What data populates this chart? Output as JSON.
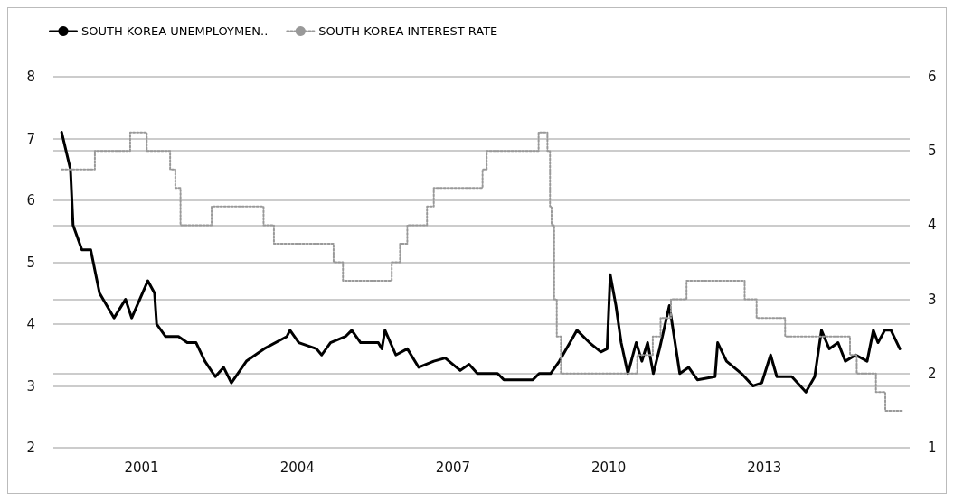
{
  "chart_data": {
    "type": "line",
    "legend": "top left",
    "grid": true,
    "marker": "none",
    "xlim": [
      1999.3,
      2015.8
    ],
    "xticks": [
      2001,
      2004,
      2007,
      2010,
      2013
    ],
    "ylim": [
      2,
      8
    ],
    "yticks": [
      2,
      3,
      4,
      5,
      6,
      7,
      8
    ],
    "y2lim": [
      1,
      6
    ],
    "y2ticks": [
      1,
      2,
      3,
      4,
      5,
      6
    ],
    "series": [
      {
        "name": "SOUTH KOREA UNEMPLOYMEN..",
        "color": "#000000",
        "line_style": "solid",
        "x": [
          1999.46,
          1999.63,
          1999.68,
          1999.85,
          2000.02,
          2000.19,
          2000.47,
          2000.69,
          2000.81,
          2001.12,
          2001.25,
          2001.29,
          2001.46,
          2001.71,
          2001.88,
          2002.05,
          2002.22,
          2002.42,
          2002.58,
          2002.73,
          2003.02,
          2003.36,
          2003.8,
          2003.86,
          2004.03,
          2004.37,
          2004.47,
          2004.64,
          2004.93,
          2005.05,
          2005.22,
          2005.56,
          2005.63,
          2005.69,
          2005.9,
          2006.12,
          2006.34,
          2006.63,
          2006.85,
          2007.14,
          2007.31,
          2007.47,
          2007.86,
          2007.98,
          2008.54,
          2008.66,
          2008.88,
          2009.05,
          2009.39,
          2009.63,
          2009.85,
          2009.97,
          2010.03,
          2010.14,
          2010.24,
          2010.37,
          2010.53,
          2010.64,
          2010.75,
          2010.86,
          2010.98,
          2011.17,
          2011.37,
          2011.54,
          2011.71,
          2012.05,
          2012.1,
          2012.27,
          2012.56,
          2012.78,
          2012.95,
          2013.12,
          2013.24,
          2013.53,
          2013.8,
          2013.97,
          2014.1,
          2014.25,
          2014.42,
          2014.56,
          2014.76,
          2014.98,
          2015.1,
          2015.19,
          2015.32,
          2015.44,
          2015.61
        ],
        "values": [
          7.1,
          6.5,
          5.6,
          5.2,
          5.2,
          4.5,
          4.1,
          4.4,
          4.1,
          4.7,
          4.5,
          4.0,
          3.8,
          3.8,
          3.7,
          3.7,
          3.4,
          3.15,
          3.3,
          3.05,
          3.4,
          3.6,
          3.8,
          3.9,
          3.7,
          3.6,
          3.5,
          3.7,
          3.8,
          3.9,
          3.7,
          3.7,
          3.6,
          3.9,
          3.5,
          3.6,
          3.3,
          3.4,
          3.45,
          3.25,
          3.35,
          3.2,
          3.2,
          3.1,
          3.1,
          3.2,
          3.2,
          3.4,
          3.9,
          3.7,
          3.55,
          3.6,
          4.8,
          4.3,
          3.7,
          3.2,
          3.7,
          3.4,
          3.7,
          3.2,
          3.6,
          4.3,
          3.2,
          3.3,
          3.1,
          3.15,
          3.7,
          3.4,
          3.2,
          3.0,
          3.05,
          3.5,
          3.15,
          3.15,
          2.9,
          3.15,
          3.9,
          3.6,
          3.7,
          3.4,
          3.5,
          3.4,
          3.9,
          3.7,
          3.9,
          3.9,
          3.6
        ]
      },
      {
        "name": "SOUTH KOREA INTEREST RATE",
        "type": "step",
        "axis": "y2",
        "color": "#999999",
        "line_style": "dotted",
        "x": [
          1999.46,
          2000.1,
          2000.78,
          2001.1,
          2001.55,
          2001.65,
          2001.75,
          2002.35,
          2003.35,
          2003.55,
          2004.7,
          2004.88,
          2005.82,
          2005.98,
          2006.12,
          2006.5,
          2006.63,
          2007.57,
          2007.65,
          2008.65,
          2008.82,
          2008.87,
          2008.9,
          2008.95,
          2009.0,
          2009.08,
          2010.55,
          2010.85,
          2011.0,
          2011.2,
          2011.5,
          2012.62,
          2012.85,
          2013.4,
          2014.65,
          2014.78,
          2015.15,
          2015.33,
          2015.66
        ],
        "values": [
          4.75,
          5.0,
          5.25,
          5.0,
          4.75,
          4.5,
          4.0,
          4.25,
          4.0,
          3.75,
          3.5,
          3.25,
          3.5,
          3.75,
          4.0,
          4.25,
          4.5,
          4.75,
          5.0,
          5.25,
          5.0,
          4.25,
          4.0,
          3.0,
          2.5,
          2.0,
          2.25,
          2.5,
          2.75,
          3.0,
          3.25,
          3.0,
          2.75,
          2.5,
          2.25,
          2.0,
          1.75,
          1.5,
          1.5
        ]
      }
    ]
  }
}
